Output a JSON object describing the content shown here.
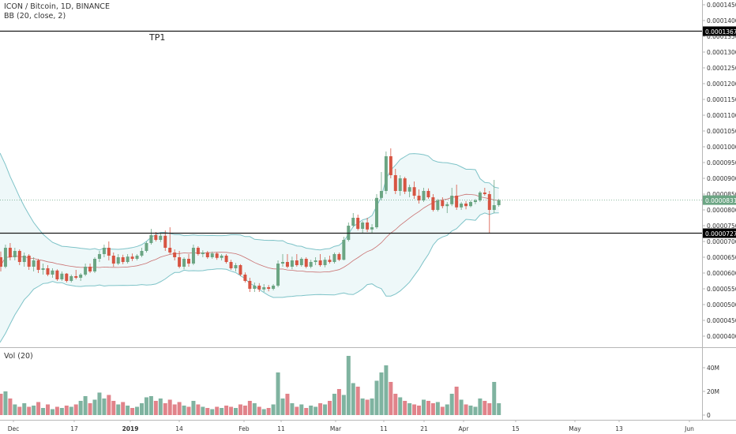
{
  "chart_data": {
    "type": "candlestick",
    "legend": {
      "symbol_line": "ICON / Bitcoin, 1D, BINANCE",
      "indicator_line": "BB (20, close, 2)",
      "volume_line": "Vol (20)"
    },
    "annotation": {
      "text": "TP1",
      "price": 0.0001367
    },
    "horizontal_lines": [
      {
        "price": 0.0001367,
        "label": "0.0001367"
      },
      {
        "price": 7.27e-05,
        "label": "0.0000727"
      }
    ],
    "last_price": {
      "value": 8.31e-05,
      "label": "0.0000831"
    },
    "price_ticks": [
      "0.0001450",
      "0.0001400",
      "0.0001350",
      "0.0001300",
      "0.0001250",
      "0.0001200",
      "0.0001150",
      "0.0001100",
      "0.0001050",
      "0.0001000",
      "0.0000950",
      "0.0000900",
      "0.0000850",
      "0.0000800",
      "0.0000750",
      "0.0000700",
      "0.0000650",
      "0.0000600",
      "0.0000550",
      "0.0000500",
      "0.0000450",
      "0.0000400"
    ],
    "volume_ticks": [
      "40M",
      "20M",
      "0"
    ],
    "time_ticks": [
      "Dec",
      "17",
      "2019",
      "14",
      "Feb",
      "11",
      "Mar",
      "11",
      "21",
      "Apr",
      "15",
      "May",
      "13",
      "Jun"
    ],
    "colors": {
      "up": "#6ba583",
      "down": "#d75442",
      "vol_up": "#7fb3a0",
      "vol_down": "#e1838a",
      "bb_band": "#7ec3c8",
      "bb_fill": "#eef8f9",
      "bb_mid": "#c97070"
    },
    "candles": [
      {
        "o": 6.5e-05,
        "h": 6.68e-05,
        "l": 6.05e-05,
        "c": 6.2e-05,
        "v": 18
      },
      {
        "o": 6.2e-05,
        "h": 6.9e-05,
        "l": 6.15e-05,
        "c": 6.8e-05,
        "v": 20
      },
      {
        "o": 6.8e-05,
        "h": 6.95e-05,
        "l": 6.4e-05,
        "c": 6.5e-05,
        "v": 14
      },
      {
        "o": 6.5e-05,
        "h": 6.8e-05,
        "l": 6.4e-05,
        "c": 6.7e-05,
        "v": 9
      },
      {
        "o": 6.7e-05,
        "h": 6.75e-05,
        "l": 6.25e-05,
        "c": 6.35e-05,
        "v": 7
      },
      {
        "o": 6.35e-05,
        "h": 6.65e-05,
        "l": 6.2e-05,
        "c": 6.55e-05,
        "v": 10
      },
      {
        "o": 6.55e-05,
        "h": 6.6e-05,
        "l": 6.1e-05,
        "c": 6.2e-05,
        "v": 7
      },
      {
        "o": 6.2e-05,
        "h": 6.5e-05,
        "l": 6.05e-05,
        "c": 6.4e-05,
        "v": 8
      },
      {
        "o": 6.4e-05,
        "h": 6.45e-05,
        "l": 6e-05,
        "c": 6.1e-05,
        "v": 11
      },
      {
        "o": 6.1e-05,
        "h": 6.3e-05,
        "l": 5.95e-05,
        "c": 6.15e-05,
        "v": 6
      },
      {
        "o": 6.15e-05,
        "h": 6.25e-05,
        "l": 5.9e-05,
        "c": 5.95e-05,
        "v": 9
      },
      {
        "o": 5.95e-05,
        "h": 6.15e-05,
        "l": 5.85e-05,
        "c": 6.08e-05,
        "v": 5
      },
      {
        "o": 6.08e-05,
        "h": 6.12e-05,
        "l": 5.75e-05,
        "c": 5.8e-05,
        "v": 7
      },
      {
        "o": 5.8e-05,
        "h": 6.05e-05,
        "l": 5.75e-05,
        "c": 5.98e-05,
        "v": 6
      },
      {
        "o": 5.98e-05,
        "h": 6e-05,
        "l": 5.7e-05,
        "c": 5.75e-05,
        "v": 8
      },
      {
        "o": 5.75e-05,
        "h": 5.95e-05,
        "l": 5.7e-05,
        "c": 5.9e-05,
        "v": 7
      },
      {
        "o": 5.9e-05,
        "h": 6.1e-05,
        "l": 5.8e-05,
        "c": 5.85e-05,
        "v": 9
      },
      {
        "o": 5.85e-05,
        "h": 6e-05,
        "l": 5.75e-05,
        "c": 5.95e-05,
        "v": 12
      },
      {
        "o": 5.95e-05,
        "h": 6.3e-05,
        "l": 5.9e-05,
        "c": 6.2e-05,
        "v": 16
      },
      {
        "o": 6.2e-05,
        "h": 6.3e-05,
        "l": 6e-05,
        "c": 6.05e-05,
        "v": 10
      },
      {
        "o": 6.05e-05,
        "h": 6.5e-05,
        "l": 6e-05,
        "c": 6.45e-05,
        "v": 13
      },
      {
        "o": 6.45e-05,
        "h": 6.7e-05,
        "l": 6.35e-05,
        "c": 6.6e-05,
        "v": 19
      },
      {
        "o": 6.6e-05,
        "h": 6.9e-05,
        "l": 6.5e-05,
        "c": 6.8e-05,
        "v": 14
      },
      {
        "o": 6.8e-05,
        "h": 7e-05,
        "l": 6.4e-05,
        "c": 6.55e-05,
        "v": 17
      },
      {
        "o": 6.55e-05,
        "h": 6.65e-05,
        "l": 6.2e-05,
        "c": 6.3e-05,
        "v": 12
      },
      {
        "o": 6.3e-05,
        "h": 6.6e-05,
        "l": 6.25e-05,
        "c": 6.5e-05,
        "v": 9
      },
      {
        "o": 6.5e-05,
        "h": 6.58e-05,
        "l": 6.28e-05,
        "c": 6.35e-05,
        "v": 11
      },
      {
        "o": 6.35e-05,
        "h": 6.6e-05,
        "l": 6.3e-05,
        "c": 6.52e-05,
        "v": 8
      },
      {
        "o": 6.52e-05,
        "h": 6.62e-05,
        "l": 6.38e-05,
        "c": 6.45e-05,
        "v": 6
      },
      {
        "o": 6.45e-05,
        "h": 6.6e-05,
        "l": 6.4e-05,
        "c": 6.55e-05,
        "v": 7
      },
      {
        "o": 6.55e-05,
        "h": 6.8e-05,
        "l": 6.5e-05,
        "c": 6.7e-05,
        "v": 10
      },
      {
        "o": 6.7e-05,
        "h": 7e-05,
        "l": 6.65e-05,
        "c": 6.95e-05,
        "v": 15
      },
      {
        "o": 6.95e-05,
        "h": 7.4e-05,
        "l": 6.9e-05,
        "c": 7.2e-05,
        "v": 16
      },
      {
        "o": 7.2e-05,
        "h": 7.3e-05,
        "l": 7e-05,
        "c": 7.05e-05,
        "v": 12
      },
      {
        "o": 7.05e-05,
        "h": 7.25e-05,
        "l": 6.98e-05,
        "c": 7.18e-05,
        "v": 14
      },
      {
        "o": 7.18e-05,
        "h": 7.35e-05,
        "l": 6.7e-05,
        "c": 6.8e-05,
        "v": 10
      },
      {
        "o": 6.8e-05,
        "h": 7.45e-05,
        "l": 6.6e-05,
        "c": 6.65e-05,
        "v": 13
      },
      {
        "o": 6.65e-05,
        "h": 6.75e-05,
        "l": 6.4e-05,
        "c": 6.5e-05,
        "v": 9
      },
      {
        "o": 6.5e-05,
        "h": 6.7e-05,
        "l": 6.15e-05,
        "c": 6.2e-05,
        "v": 11
      },
      {
        "o": 6.2e-05,
        "h": 6.5e-05,
        "l": 6.12e-05,
        "c": 6.45e-05,
        "v": 8
      },
      {
        "o": 6.45e-05,
        "h": 6.6e-05,
        "l": 6.2e-05,
        "c": 6.3e-05,
        "v": 7
      },
      {
        "o": 6.3e-05,
        "h": 6.9e-05,
        "l": 6.25e-05,
        "c": 6.8e-05,
        "v": 12
      },
      {
        "o": 6.8e-05,
        "h": 6.85e-05,
        "l": 6.55e-05,
        "c": 6.6e-05,
        "v": 9
      },
      {
        "o": 6.6e-05,
        "h": 6.72e-05,
        "l": 6.5e-05,
        "c": 6.65e-05,
        "v": 7
      },
      {
        "o": 6.65e-05,
        "h": 6.7e-05,
        "l": 6.45e-05,
        "c": 6.5e-05,
        "v": 6
      },
      {
        "o": 6.5e-05,
        "h": 6.68e-05,
        "l": 6.45e-05,
        "c": 6.62e-05,
        "v": 5
      },
      {
        "o": 6.62e-05,
        "h": 6.66e-05,
        "l": 6.42e-05,
        "c": 6.48e-05,
        "v": 7
      },
      {
        "o": 6.48e-05,
        "h": 6.6e-05,
        "l": 6.4e-05,
        "c": 6.55e-05,
        "v": 6
      },
      {
        "o": 6.55e-05,
        "h": 6.6e-05,
        "l": 6.3e-05,
        "c": 6.35e-05,
        "v": 8
      },
      {
        "o": 6.35e-05,
        "h": 6.42e-05,
        "l": 6.1e-05,
        "c": 6.15e-05,
        "v": 7
      },
      {
        "o": 6.15e-05,
        "h": 6.32e-05,
        "l": 6.05e-05,
        "c": 6.25e-05,
        "v": 6
      },
      {
        "o": 6.25e-05,
        "h": 6.28e-05,
        "l": 5.9e-05,
        "c": 5.95e-05,
        "v": 9
      },
      {
        "o": 5.95e-05,
        "h": 6.02e-05,
        "l": 5.7e-05,
        "c": 5.75e-05,
        "v": 8
      },
      {
        "o": 5.75e-05,
        "h": 5.85e-05,
        "l": 5.4e-05,
        "c": 5.5e-05,
        "v": 12
      },
      {
        "o": 5.5e-05,
        "h": 5.7e-05,
        "l": 5.4e-05,
        "c": 5.6e-05,
        "v": 10
      },
      {
        "o": 5.6e-05,
        "h": 5.68e-05,
        "l": 5.4e-05,
        "c": 5.48e-05,
        "v": 7
      },
      {
        "o": 5.48e-05,
        "h": 5.65e-05,
        "l": 5.4e-05,
        "c": 5.55e-05,
        "v": 5
      },
      {
        "o": 5.55e-05,
        "h": 5.62e-05,
        "l": 5.42e-05,
        "c": 5.5e-05,
        "v": 6
      },
      {
        "o": 5.5e-05,
        "h": 5.65e-05,
        "l": 5.45e-05,
        "c": 5.6e-05,
        "v": 9
      },
      {
        "o": 5.6e-05,
        "h": 6.4e-05,
        "l": 5.55e-05,
        "c": 6.3e-05,
        "v": 36
      },
      {
        "o": 6.3e-05,
        "h": 6.6e-05,
        "l": 6.2e-05,
        "c": 6.35e-05,
        "v": 14
      },
      {
        "o": 6.35e-05,
        "h": 6.6e-05,
        "l": 6.15e-05,
        "c": 6.2e-05,
        "v": 18
      },
      {
        "o": 6.2e-05,
        "h": 6.52e-05,
        "l": 6.12e-05,
        "c": 6.4e-05,
        "v": 10
      },
      {
        "o": 6.4e-05,
        "h": 6.6e-05,
        "l": 6.2e-05,
        "c": 6.25e-05,
        "v": 7
      },
      {
        "o": 6.25e-05,
        "h": 6.5e-05,
        "l": 6.2e-05,
        "c": 6.45e-05,
        "v": 9
      },
      {
        "o": 6.45e-05,
        "h": 6.5e-05,
        "l": 6.15e-05,
        "c": 6.2e-05,
        "v": 6
      },
      {
        "o": 6.2e-05,
        "h": 6.42e-05,
        "l": 6.15e-05,
        "c": 6.35e-05,
        "v": 8
      },
      {
        "o": 6.35e-05,
        "h": 6.5e-05,
        "l": 6.25e-05,
        "c": 6.4e-05,
        "v": 7
      },
      {
        "o": 6.4e-05,
        "h": 6.6e-05,
        "l": 6.2e-05,
        "c": 6.25e-05,
        "v": 10
      },
      {
        "o": 6.25e-05,
        "h": 6.5e-05,
        "l": 6.18e-05,
        "c": 6.42e-05,
        "v": 9
      },
      {
        "o": 6.42e-05,
        "h": 6.55e-05,
        "l": 6.3e-05,
        "c": 6.35e-05,
        "v": 12
      },
      {
        "o": 6.35e-05,
        "h": 6.65e-05,
        "l": 6.3e-05,
        "c": 6.6e-05,
        "v": 18
      },
      {
        "o": 6.6e-05,
        "h": 6.65e-05,
        "l": 6.38e-05,
        "c": 6.42e-05,
        "v": 22
      },
      {
        "o": 6.42e-05,
        "h": 7.15e-05,
        "l": 6.4e-05,
        "c": 7.05e-05,
        "v": 17
      },
      {
        "o": 7.05e-05,
        "h": 7.6e-05,
        "l": 7e-05,
        "c": 7.5e-05,
        "v": 50
      },
      {
        "o": 7.5e-05,
        "h": 7.9e-05,
        "l": 7.45e-05,
        "c": 7.75e-05,
        "v": 27
      },
      {
        "o": 7.75e-05,
        "h": 7.85e-05,
        "l": 7.35e-05,
        "c": 7.4e-05,
        "v": 24
      },
      {
        "o": 7.4e-05,
        "h": 7.65e-05,
        "l": 7.25e-05,
        "c": 7.6e-05,
        "v": 14
      },
      {
        "o": 7.6e-05,
        "h": 7.75e-05,
        "l": 7.3e-05,
        "c": 7.38e-05,
        "v": 13
      },
      {
        "o": 7.38e-05,
        "h": 7.55e-05,
        "l": 7.25e-05,
        "c": 7.45e-05,
        "v": 14
      },
      {
        "o": 7.45e-05,
        "h": 8.5e-05,
        "l": 7.4e-05,
        "c": 8.38e-05,
        "v": 29
      },
      {
        "o": 8.38e-05,
        "h": 9.2e-05,
        "l": 8.3e-05,
        "c": 8.6e-05,
        "v": 36
      },
      {
        "o": 8.6e-05,
        "h": 9.85e-05,
        "l": 8.5e-05,
        "c": 9.7e-05,
        "v": 42
      },
      {
        "o": 9.7e-05,
        "h": 9.95e-05,
        "l": 9e-05,
        "c": 9.1e-05,
        "v": 28
      },
      {
        "o": 9.1e-05,
        "h": 9.3e-05,
        "l": 8.5e-05,
        "c": 8.6e-05,
        "v": 18
      },
      {
        "o": 8.6e-05,
        "h": 9.1e-05,
        "l": 8.45e-05,
        "c": 9e-05,
        "v": 15
      },
      {
        "o": 9e-05,
        "h": 9.05e-05,
        "l": 8.5e-05,
        "c": 8.58e-05,
        "v": 12
      },
      {
        "o": 8.58e-05,
        "h": 8.8e-05,
        "l": 8.4e-05,
        "c": 8.72e-05,
        "v": 10
      },
      {
        "o": 8.72e-05,
        "h": 8.9e-05,
        "l": 8.35e-05,
        "c": 8.45e-05,
        "v": 9
      },
      {
        "o": 8.45e-05,
        "h": 8.65e-05,
        "l": 8.2e-05,
        "c": 8.3e-05,
        "v": 8
      },
      {
        "o": 8.3e-05,
        "h": 8.7e-05,
        "l": 8.25e-05,
        "c": 8.6e-05,
        "v": 13
      },
      {
        "o": 8.6e-05,
        "h": 8.68e-05,
        "l": 8.35e-05,
        "c": 8.4e-05,
        "v": 12
      },
      {
        "o": 8.4e-05,
        "h": 8.5e-05,
        "l": 7.95e-05,
        "c": 8e-05,
        "v": 10
      },
      {
        "o": 8e-05,
        "h": 8.35e-05,
        "l": 7.95e-05,
        "c": 8.3e-05,
        "v": 11
      },
      {
        "o": 8.3e-05,
        "h": 8.4e-05,
        "l": 8.05e-05,
        "c": 8.12e-05,
        "v": 7
      },
      {
        "o": 8.12e-05,
        "h": 8.25e-05,
        "l": 7.9e-05,
        "c": 8.18e-05,
        "v": 9
      },
      {
        "o": 8.18e-05,
        "h": 8.7e-05,
        "l": 8.12e-05,
        "c": 8.45e-05,
        "v": 18
      },
      {
        "o": 8.45e-05,
        "h": 8.8e-05,
        "l": 8e-05,
        "c": 8.08e-05,
        "v": 24
      },
      {
        "o": 8.08e-05,
        "h": 8.25e-05,
        "l": 8e-05,
        "c": 8.2e-05,
        "v": 13
      },
      {
        "o": 8.2e-05,
        "h": 8.28e-05,
        "l": 8.02e-05,
        "c": 8.12e-05,
        "v": 9
      },
      {
        "o": 8.12e-05,
        "h": 8.3e-05,
        "l": 8.08e-05,
        "c": 8.25e-05,
        "v": 8
      },
      {
        "o": 8.25e-05,
        "h": 8.35e-05,
        "l": 8.18e-05,
        "c": 8.3e-05,
        "v": 7
      },
      {
        "o": 8.3e-05,
        "h": 8.6e-05,
        "l": 8.25e-05,
        "c": 8.55e-05,
        "v": 14
      },
      {
        "o": 8.55e-05,
        "h": 8.7e-05,
        "l": 8.45e-05,
        "c": 8.5e-05,
        "v": 12
      },
      {
        "o": 8.5e-05,
        "h": 8.6e-05,
        "l": 7.25e-05,
        "c": 8e-05,
        "v": 10
      },
      {
        "o": 8e-05,
        "h": 8.95e-05,
        "l": 7.9e-05,
        "c": 8.15e-05,
        "v": 28
      },
      {
        "o": 8.15e-05,
        "h": 8.35e-05,
        "l": 8.1e-05,
        "c": 8.31e-05,
        "v": 10
      }
    ]
  }
}
